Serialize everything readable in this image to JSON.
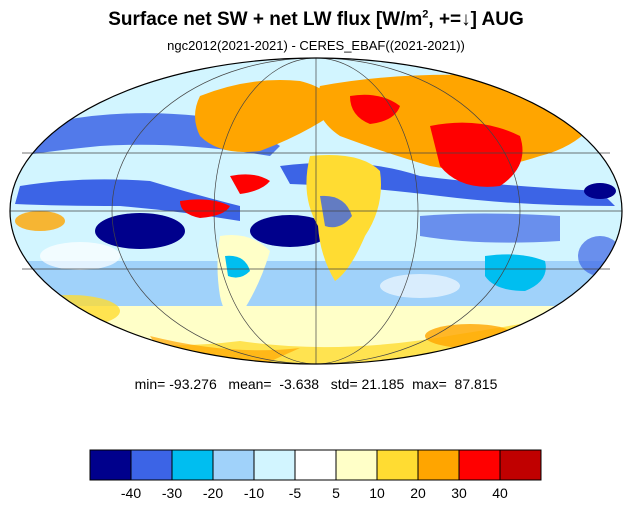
{
  "title": {
    "main": "Surface net SW + net LW flux  [W/m",
    "sup": "2",
    "rest": ", +=↓]  AUG"
  },
  "subtitle": "ngc2012(2021-2021) - CERES_EBAF((2021-2021))",
  "stats": {
    "min_label": "min=",
    "min": "-93.276",
    "mean_label": "mean=",
    "mean": "-3.638",
    "std_label": "std=",
    "std": "21.185",
    "max_label": "max=",
    "max": "87.815"
  },
  "colorbar": {
    "colors": [
      "#00008c",
      "#3c64e6",
      "#00bef0",
      "#a0d2fa",
      "#d2f5ff",
      "#ffffff",
      "#ffffc8",
      "#ffdc32",
      "#ffa500",
      "#ff0000",
      "#c00000"
    ],
    "labels": [
      "-40",
      "-30",
      "-20",
      "-10",
      "-5",
      "5",
      "10",
      "20",
      "30",
      "40"
    ]
  },
  "map": {
    "projection": "mollweide",
    "gridlines_deg": {
      "lat_step": 30,
      "lon_step": 60
    },
    "background_color": "#ffffff"
  }
}
